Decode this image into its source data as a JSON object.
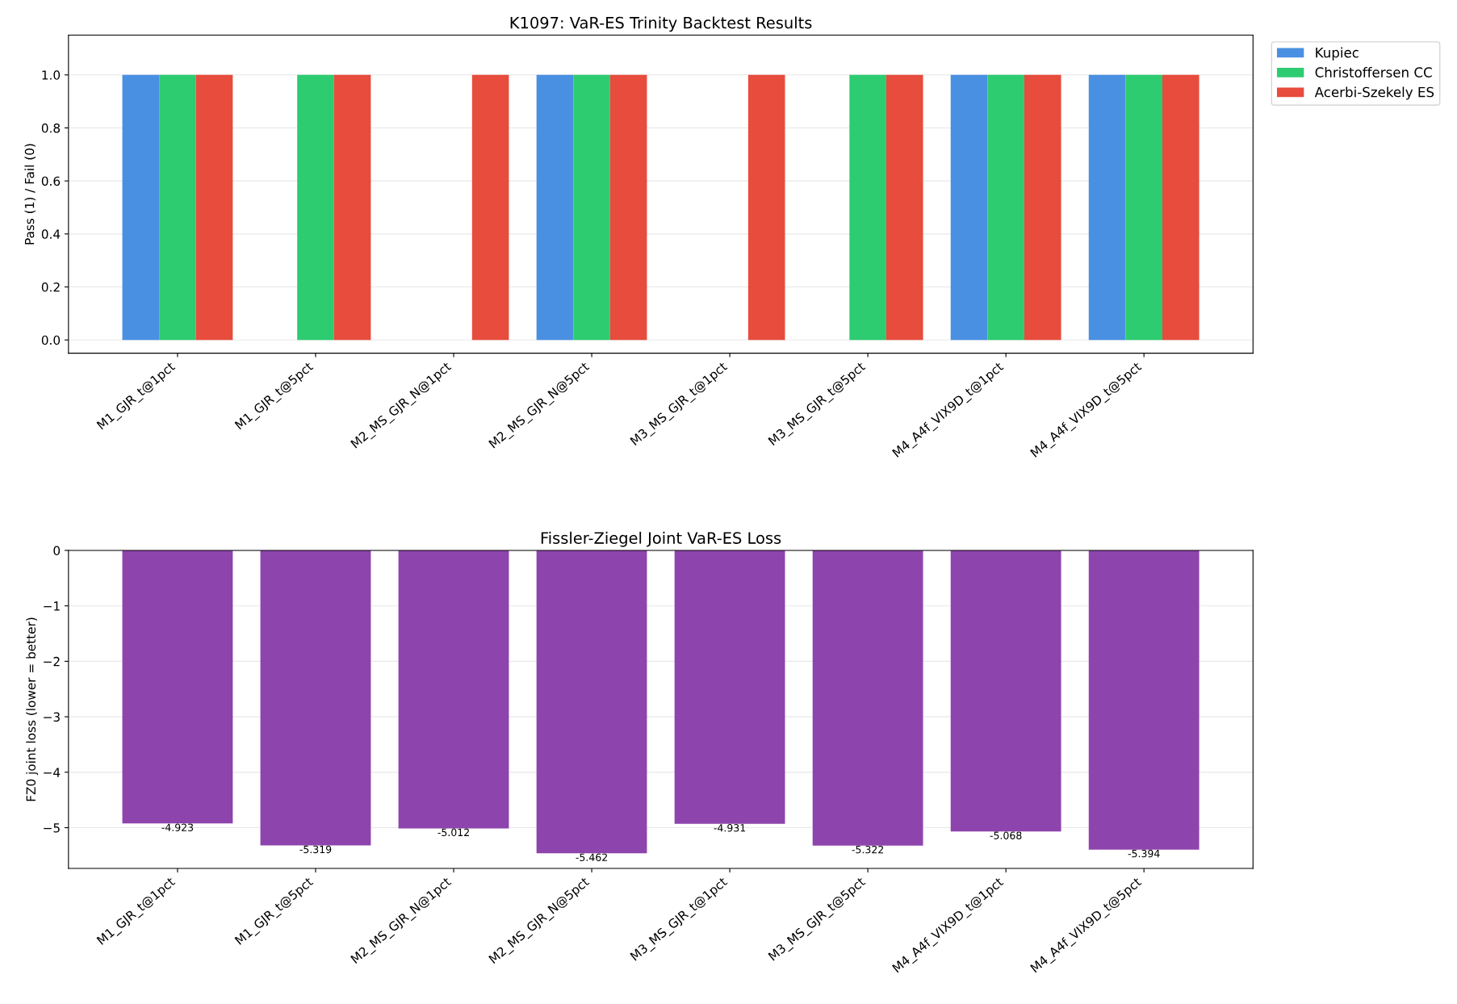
{
  "chart_data": [
    {
      "type": "bar",
      "title": "K1097: VaR-ES Trinity Backtest Results",
      "ylabel": "Pass (1) / Fail (0)",
      "categories": [
        "M1_GJR_t@1pct",
        "M1_GJR_t@5pct",
        "M2_MS_GJR_N@1pct",
        "M2_MS_GJR_N@5pct",
        "M3_MS_GJR_t@1pct",
        "M3_MS_GJR_t@5pct",
        "M4_A4f_VIX9D_t@1pct",
        "M4_A4f_VIX9D_t@5pct"
      ],
      "series": [
        {
          "name": "Kupiec",
          "color": "#4a90e2",
          "values": [
            1,
            0,
            0,
            1,
            0,
            0,
            1,
            1
          ]
        },
        {
          "name": "Christoffersen CC",
          "color": "#2ecc71",
          "values": [
            1,
            1,
            0,
            1,
            0,
            1,
            1,
            1
          ]
        },
        {
          "name": "Acerbi-Szekely ES",
          "color": "#e74c3c",
          "values": [
            1,
            1,
            1,
            1,
            1,
            1,
            1,
            1
          ]
        }
      ],
      "ylim": [
        -0.05,
        1.15
      ],
      "yticks": [
        {
          "value": 0,
          "label": "0.0"
        },
        {
          "value": 0.2,
          "label": "0.2"
        },
        {
          "value": 0.4,
          "label": "0.4"
        },
        {
          "value": 0.6,
          "label": "0.6"
        },
        {
          "value": 0.8,
          "label": "0.8"
        },
        {
          "value": 1,
          "label": "1.0"
        }
      ],
      "grid": "y",
      "legend": "top right"
    },
    {
      "type": "bar",
      "title": "Fissler-Ziegel Joint VaR-ES Loss",
      "ylabel": "FZ0 joint loss (lower = better)",
      "categories": [
        "M1_GJR_t@1pct",
        "M1_GJR_t@5pct",
        "M2_MS_GJR_N@1pct",
        "M2_MS_GJR_N@5pct",
        "M3_MS_GJR_t@1pct",
        "M3_MS_GJR_t@5pct",
        "M4_A4f_VIX9D_t@1pct",
        "M4_A4f_VIX9D_t@5pct"
      ],
      "series": [
        {
          "color": "#8e44ad",
          "values": [
            -4.923,
            -5.319,
            -5.012,
            -5.462,
            -4.931,
            -5.322,
            -5.068,
            -5.394
          ]
        }
      ],
      "ylim": [
        -5.735,
        0
      ],
      "yticks": [
        {
          "value": -5,
          "label": "−5"
        },
        {
          "value": -4,
          "label": "−4"
        },
        {
          "value": -3,
          "label": "−3"
        },
        {
          "value": -2,
          "label": "−2"
        },
        {
          "value": -1,
          "label": "−1"
        },
        0
      ],
      "grid": "y",
      "data_labels": true
    }
  ]
}
